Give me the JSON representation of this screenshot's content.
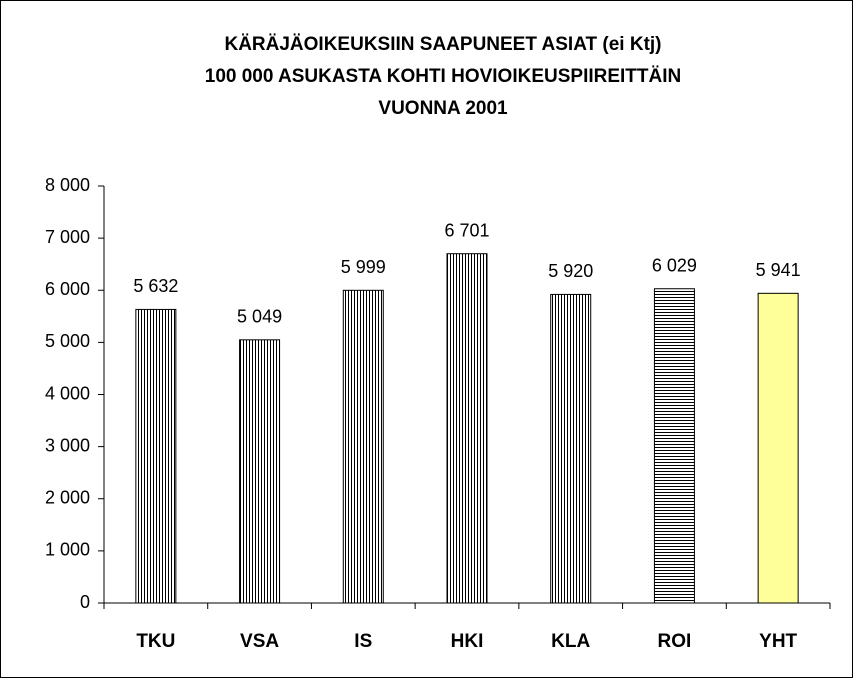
{
  "chart_data": {
    "type": "bar",
    "title": [
      "KÄRÄJÄOIKEUKSIIN SAAPUNEET ASIAT (ei Ktj)",
      "100 000 ASUKASTA KOHTI HOVIOIKEUSPIIREITTÄIN",
      "VUONNA 2001"
    ],
    "categories": [
      "TKU",
      "VSA",
      "IS",
      "HKI",
      "KLA",
      "ROI",
      "YHT"
    ],
    "values": [
      5632,
      5049,
      5999,
      6701,
      5920,
      6029,
      5941
    ],
    "value_labels": [
      "5 632",
      "5 049",
      "5 999",
      "6 701",
      "5 920",
      "6 029",
      "5 941"
    ],
    "colors": [
      "#000000",
      "#000000",
      "#000000",
      "#000000",
      "#000000",
      "#000000",
      "#ffff99"
    ],
    "patterns": [
      "vertical",
      "vertical",
      "vertical",
      "vertical",
      "vertical",
      "horizontal",
      "solid"
    ],
    "ylim": [
      0,
      8000
    ],
    "yticks": [
      0,
      {
        "value": 1000,
        "label": "1 000"
      },
      {
        "value": 2000,
        "label": "2 000"
      },
      {
        "value": 3000,
        "label": "3 000"
      },
      {
        "value": 4000,
        "label": "4 000"
      },
      {
        "value": 5000,
        "label": "5 000"
      },
      {
        "value": 6000,
        "label": "6 000"
      },
      {
        "value": 7000,
        "label": "7 000"
      },
      {
        "value": 8000,
        "label": "8 000"
      }
    ],
    "grid": false
  }
}
